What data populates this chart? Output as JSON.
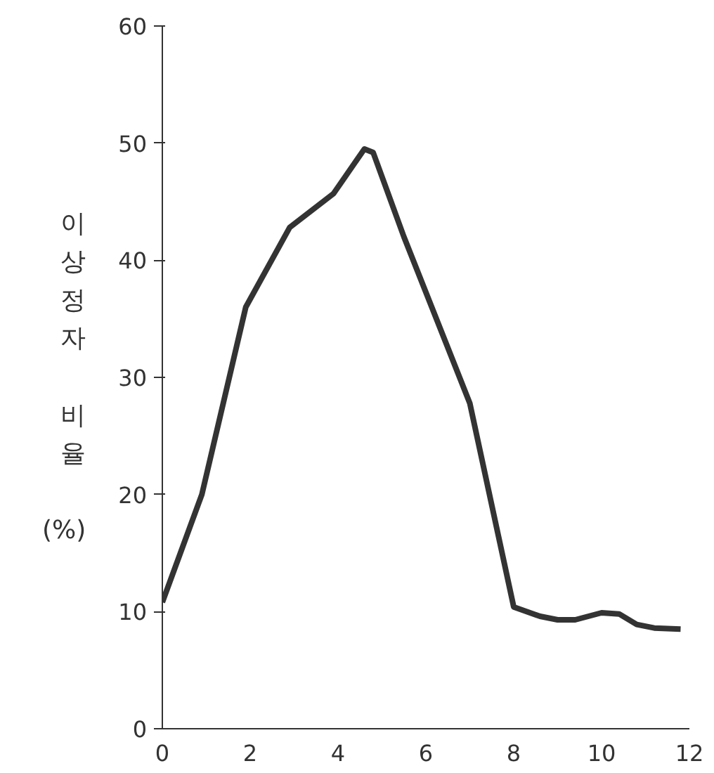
{
  "chart_data": {
    "type": "line",
    "ylabel": "이상정자 비율 (%)",
    "x": [
      0,
      0.9,
      1.9,
      2.9,
      3.9,
      4.6,
      4.8,
      5.5,
      7.0,
      8.0,
      8.6,
      9.0,
      9.4,
      10.0,
      10.4,
      10.8,
      11.2,
      11.8
    ],
    "series": [
      {
        "color": "#333333",
        "values": [
          10.8,
          20.0,
          36.0,
          42.8,
          45.7,
          49.5,
          49.2,
          42.0,
          27.8,
          10.4,
          9.6,
          9.3,
          9.3,
          9.9,
          9.8,
          8.9,
          8.6,
          8.5
        ]
      }
    ],
    "xlim": [
      0,
      12
    ],
    "ylim": [
      0,
      60
    ],
    "xticks": [
      0,
      2,
      4,
      6,
      8,
      10,
      12
    ],
    "yticks": [
      0,
      10,
      20,
      30,
      40,
      50,
      60
    ],
    "grid": false,
    "marker": "none",
    "line_style": "solid"
  }
}
